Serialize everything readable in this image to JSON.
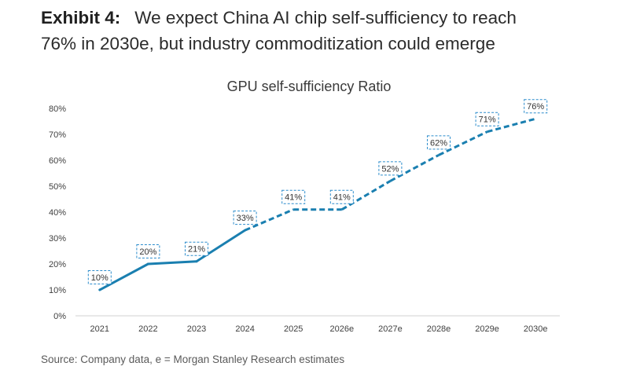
{
  "header": {
    "exhibit_label": "Exhibit 4:",
    "title_line1": "We expect China AI chip self-sufficiency to reach",
    "title_line2": "76% in 2030e, but industry commoditization could emerge"
  },
  "source_note": "Source: Company data, e = Morgan Stanley Research estimates",
  "colors": {
    "series_line": "#1a7fb0",
    "label_border": "#2b8ccc",
    "axis": "#d0d0d0",
    "tick_text": "#404040"
  },
  "chart_data": {
    "type": "line",
    "title": "GPU self-sufficiency Ratio",
    "categories": [
      "2021",
      "2022",
      "2023",
      "2024",
      "2025",
      "2026e",
      "2027e",
      "2028e",
      "2029e",
      "2030e"
    ],
    "series": [
      {
        "values": [
          10,
          20,
          21,
          33,
          41,
          41,
          52,
          62,
          71,
          76
        ],
        "data_labels": [
          "10%",
          "20%",
          "21%",
          "33%",
          "41%",
          "41%",
          "52%",
          "62%",
          "71%",
          "76%"
        ],
        "line_style_by_segment": [
          "solid",
          "solid",
          "solid",
          "dashed",
          "dashed",
          "dashed",
          "dashed",
          "dashed",
          "dashed"
        ]
      }
    ],
    "ylim": [
      0,
      80
    ],
    "y_ticks": [
      0,
      10,
      20,
      30,
      40,
      50,
      60,
      70,
      80
    ],
    "y_tick_labels": [
      "0%",
      "10%",
      "20%",
      "30%",
      "40%",
      "50%",
      "60%",
      "70%",
      "80%"
    ],
    "grid": false,
    "legend": "none",
    "xlabel": "",
    "ylabel": ""
  }
}
